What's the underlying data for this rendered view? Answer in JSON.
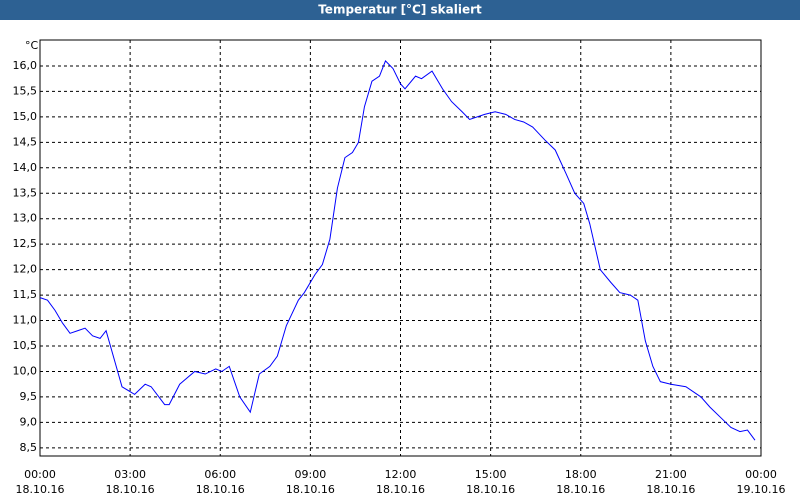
{
  "window_title": "Temperatur [°C] skaliert",
  "chart_data": {
    "type": "line",
    "ylabel": "°C",
    "x": [
      0,
      0.25,
      0.5,
      0.75,
      1.0,
      1.25,
      1.5,
      1.75,
      2.0,
      2.2,
      2.73,
      3.15,
      3.5,
      3.7,
      4.15,
      4.3,
      4.65,
      5.15,
      5.5,
      5.85,
      6.05,
      6.3,
      6.65,
      7.0,
      7.3,
      7.65,
      7.9,
      8.2,
      8.6,
      8.8,
      9.15,
      9.4,
      9.65,
      9.9,
      10.15,
      10.4,
      10.6,
      10.8,
      11.05,
      11.3,
      11.5,
      11.75,
      12.0,
      12.15,
      12.5,
      12.7,
      13.05,
      13.4,
      13.7,
      14.05,
      14.3,
      14.8,
      15.15,
      15.5,
      15.8,
      16.1,
      16.4,
      16.8,
      17.15,
      17.5,
      17.8,
      18.1,
      18.3,
      18.65,
      19.0,
      19.3,
      19.65,
      19.9,
      20.15,
      20.4,
      20.65,
      21.0,
      21.5,
      22.0,
      22.3,
      22.65,
      23.0,
      23.3,
      23.55,
      23.8
    ],
    "series": [
      {
        "name": "Temperatur",
        "color": "#0000ff",
        "values": [
          11.45,
          11.4,
          11.2,
          10.95,
          10.75,
          10.8,
          10.85,
          10.7,
          10.65,
          10.8,
          9.7,
          9.55,
          9.75,
          9.7,
          9.35,
          9.35,
          9.75,
          10.0,
          9.95,
          10.05,
          10.0,
          10.1,
          9.5,
          9.2,
          9.95,
          10.1,
          10.3,
          10.9,
          11.4,
          11.55,
          11.9,
          12.1,
          12.6,
          13.6,
          14.2,
          14.3,
          14.5,
          15.2,
          15.7,
          15.8,
          16.1,
          15.95,
          15.65,
          15.55,
          15.8,
          15.75,
          15.9,
          15.55,
          15.3,
          15.1,
          14.95,
          15.05,
          15.1,
          15.05,
          14.95,
          14.9,
          14.8,
          14.55,
          14.35,
          13.9,
          13.5,
          13.3,
          12.9,
          12.0,
          11.75,
          11.55,
          11.5,
          11.4,
          10.6,
          10.1,
          9.8,
          9.75,
          9.7,
          9.5,
          9.3,
          9.1,
          8.9,
          8.82,
          8.85,
          8.65
        ]
      }
    ],
    "xlim": [
      0,
      24
    ],
    "xticks": [
      {
        "value": 0,
        "label": "00:00"
      },
      {
        "value": 3,
        "label": "03:00"
      },
      {
        "value": 6,
        "label": "06:00"
      },
      {
        "value": 9,
        "label": "09:00"
      },
      {
        "value": 12,
        "label": "12:00"
      },
      {
        "value": 15,
        "label": "15:00"
      },
      {
        "value": 18,
        "label": "18:00"
      },
      {
        "value": 21,
        "label": "21:00"
      },
      {
        "value": 24,
        "label": "00:00"
      }
    ],
    "xtick_dates": [
      "18.10.16",
      "18.10.16",
      "18.10.16",
      "18.10.16",
      "18.10.16",
      "18.10.16",
      "18.10.16",
      "18.10.16",
      "19.10.16"
    ],
    "ylim": [
      8.34,
      16.51
    ],
    "yticks": [
      {
        "value": 8.5,
        "label": "8,5"
      },
      {
        "value": 9,
        "label": "9,0"
      },
      {
        "value": 9.5,
        "label": "9,5"
      },
      {
        "value": 10,
        "label": "10,0"
      },
      {
        "value": 10.5,
        "label": "10,5"
      },
      {
        "value": 11,
        "label": "11,0"
      },
      {
        "value": 11.5,
        "label": "11,5"
      },
      {
        "value": 12,
        "label": "12,0"
      },
      {
        "value": 12.5,
        "label": "12,5"
      },
      {
        "value": 13,
        "label": "13,0"
      },
      {
        "value": 13.5,
        "label": "13,5"
      },
      {
        "value": 14,
        "label": "14,0"
      },
      {
        "value": 14.5,
        "label": "14,5"
      },
      {
        "value": 15,
        "label": "15,0"
      },
      {
        "value": 15.5,
        "label": "15,5"
      },
      {
        "value": 16,
        "label": "16,0"
      }
    ],
    "grid": true
  }
}
